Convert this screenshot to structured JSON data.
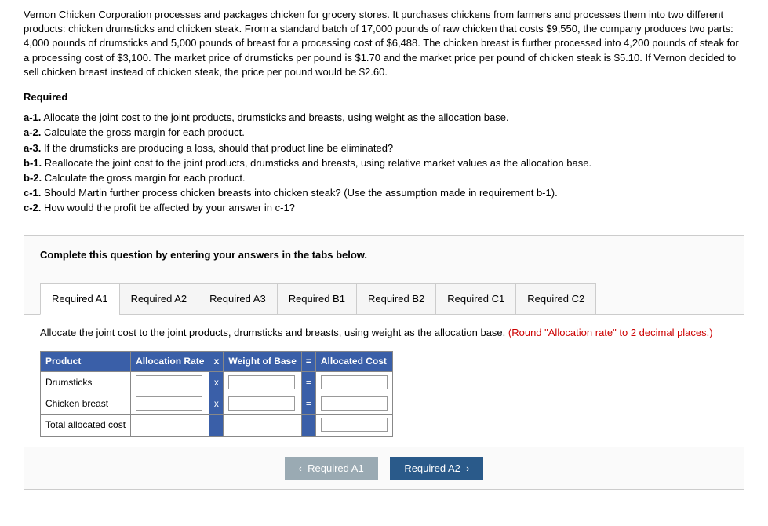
{
  "problem": {
    "text": "Vernon Chicken Corporation processes and packages chicken for grocery stores. It purchases chickens from farmers and processes them into two different products: chicken drumsticks and chicken steak. From a standard batch of 17,000 pounds of raw chicken that costs $9,550, the company produces two parts: 4,000 pounds of drumsticks and 5,000 pounds of breast for a processing cost of $6,488. The chicken breast is further processed into 4,200 pounds of steak for a processing cost of $3,100. The market price of drumsticks per pound is $1.70 and the market price per pound of chicken steak is $5.10. If Vernon decided to sell chicken breast instead of chicken steak, the price per pound would be $2.60."
  },
  "required": {
    "header": "Required",
    "items": [
      {
        "label": "a-1.",
        "text": "Allocate the joint cost to the joint products, drumsticks and breasts, using weight as the allocation base."
      },
      {
        "label": "a-2.",
        "text": "Calculate the gross margin for each product."
      },
      {
        "label": "a-3.",
        "text": "If the drumsticks are producing a loss, should that product line be eliminated?"
      },
      {
        "label": "b-1.",
        "text": "Reallocate the joint cost to the joint products, drumsticks and breasts, using relative market values as the allocation base."
      },
      {
        "label": "b-2.",
        "text": "Calculate the gross margin for each product."
      },
      {
        "label": "c-1.",
        "text": "Should Martin further process chicken breasts into chicken steak? (Use the assumption made in requirement b-1)."
      },
      {
        "label": "c-2.",
        "text": "How would the profit be affected by your answer in c-1?"
      }
    ]
  },
  "answer_area": {
    "instructions": "Complete this question by entering your answers in the tabs below.",
    "tabs": [
      {
        "label": "Required A1"
      },
      {
        "label": "Required A2"
      },
      {
        "label": "Required A3"
      },
      {
        "label": "Required B1"
      },
      {
        "label": "Required B2"
      },
      {
        "label": "Required C1"
      },
      {
        "label": "Required C2"
      }
    ],
    "active_tab": {
      "instruction": "Allocate the joint cost to the joint products, drumsticks and breasts, using weight as the allocation base. ",
      "note": "(Round \"Allocation rate\" to 2 decimal places.)"
    },
    "table": {
      "headers": [
        "Product",
        "Allocation Rate",
        "x",
        "Weight of Base",
        "=",
        "Allocated Cost"
      ],
      "rows": [
        {
          "product": "Drumsticks",
          "has_inputs": true
        },
        {
          "product": "Chicken breast",
          "has_inputs": true
        },
        {
          "product": "Total allocated cost",
          "has_inputs": false
        }
      ]
    },
    "nav": {
      "prev": "Required A1",
      "next": "Required A2"
    }
  }
}
